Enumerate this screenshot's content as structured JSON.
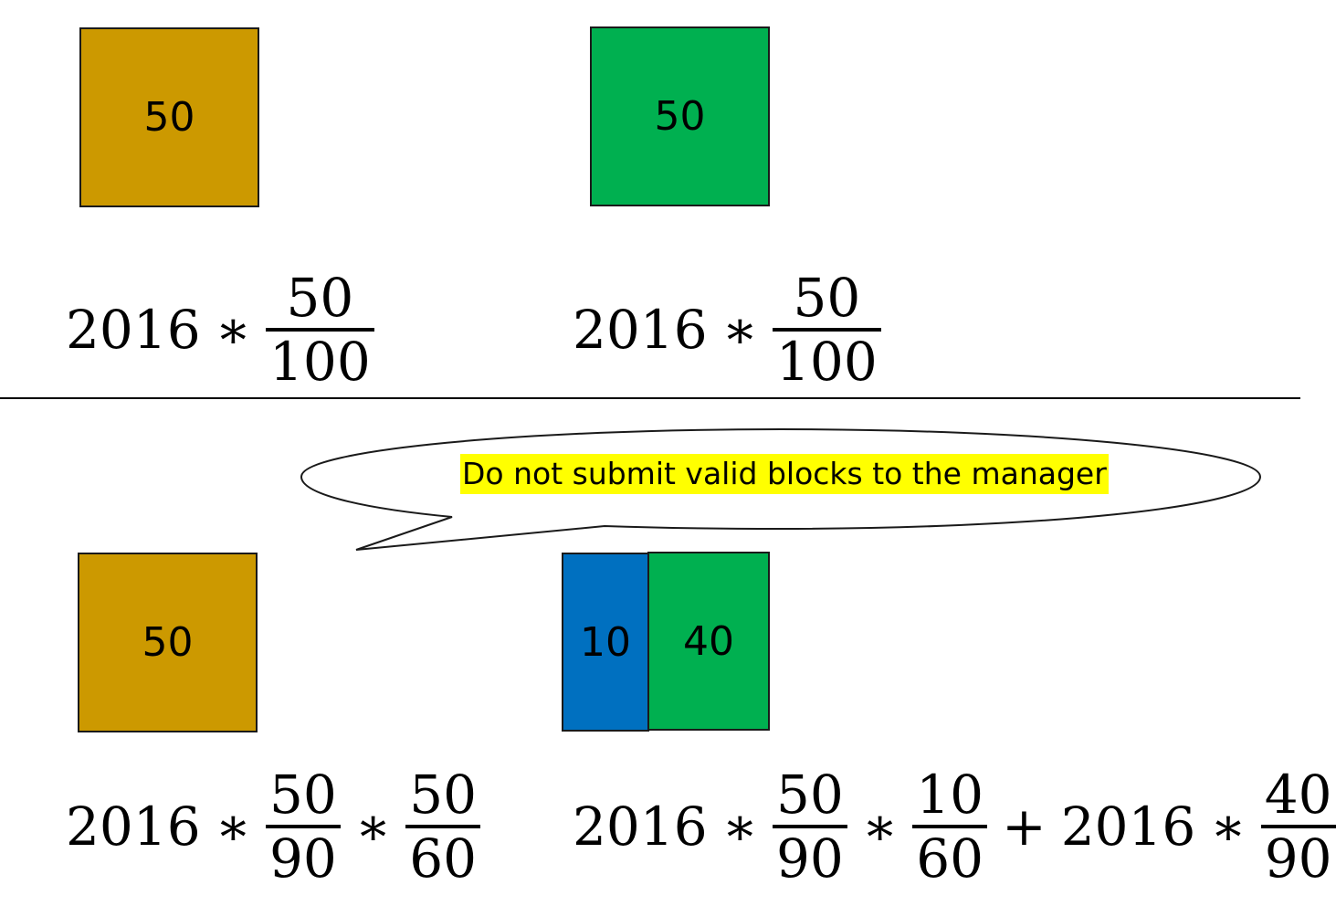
{
  "top_left": {
    "block_value": "50",
    "block_color": "#cc9900",
    "formula": {
      "coef": "2016",
      "op": "∗",
      "num": "50",
      "den": "100"
    }
  },
  "top_right": {
    "block_value": "50",
    "block_color": "#00b050",
    "formula": {
      "coef": "2016",
      "op": "∗",
      "num": "50",
      "den": "100"
    }
  },
  "callout": {
    "text": "Do not submit valid blocks to the manager",
    "highlight": "#ffff00"
  },
  "bottom_left": {
    "block_value": "50",
    "block_color": "#cc9900",
    "formula": {
      "coef": "2016",
      "op1": "∗",
      "f1_num": "50",
      "f1_den": "90",
      "op2": "∗",
      "f2_num": "50",
      "f2_den": "60"
    }
  },
  "bottom_right": {
    "block_blue_value": "10",
    "block_blue_color": "#0070c0",
    "block_green_value": "40",
    "block_green_color": "#00b050",
    "formula": {
      "coef1": "2016",
      "op1": "∗",
      "f1_num": "50",
      "f1_den": "90",
      "op2": "∗",
      "f2_num": "10",
      "f2_den": "60",
      "plus": "+",
      "coef2": "2016",
      "op3": "∗",
      "f3_num": "40",
      "f3_den": "90"
    }
  }
}
